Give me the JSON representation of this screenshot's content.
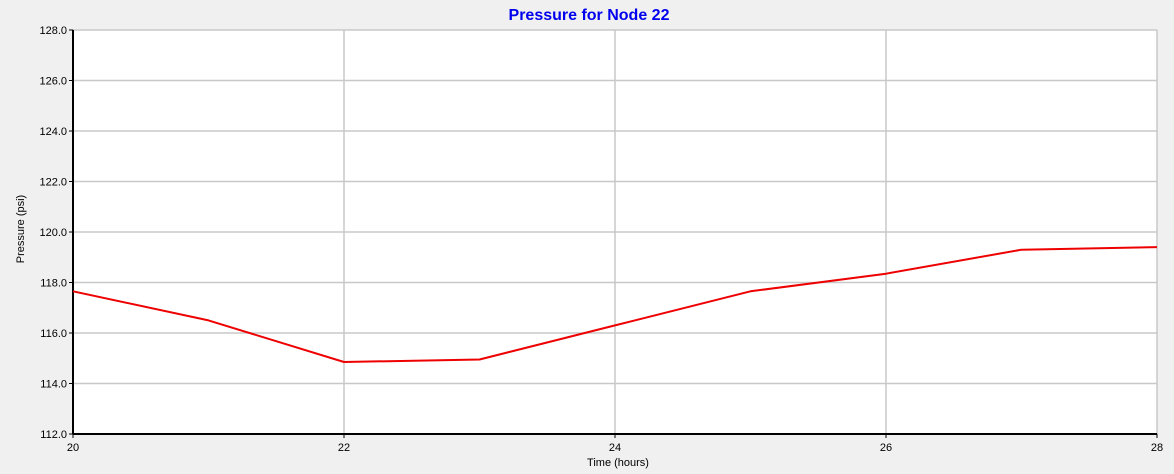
{
  "chart_data": {
    "type": "line",
    "title": "Pressure for Node 22",
    "xlabel": "Time (hours)",
    "ylabel": "Pressure (psi)",
    "xlim": [
      20,
      28
    ],
    "ylim": [
      112.0,
      128.0
    ],
    "x_ticks": [
      "20",
      "22",
      "24",
      "26",
      "28"
    ],
    "x_tick_values": [
      20,
      22,
      24,
      26,
      28
    ],
    "y_ticks": [
      "112.0",
      "114.0",
      "116.0",
      "118.0",
      "120.0",
      "122.0",
      "124.0",
      "126.0",
      "128.0"
    ],
    "y_tick_values": [
      112,
      114,
      116,
      118,
      120,
      122,
      124,
      126,
      128
    ],
    "grid": true,
    "series": [
      {
        "x": [
          20,
          21,
          22,
          23,
          24,
          25,
          26,
          27,
          28
        ],
        "values": [
          117.65,
          116.5,
          114.85,
          114.95,
          116.3,
          117.65,
          118.35,
          119.3,
          119.4
        ]
      }
    ]
  },
  "colors": {
    "title": "#0000ee",
    "series_line": "#ee0000",
    "plot_background": "#ffffff",
    "page_background": "#f0f0f0",
    "grid": "#c8c8c8",
    "axis": "#000000"
  }
}
